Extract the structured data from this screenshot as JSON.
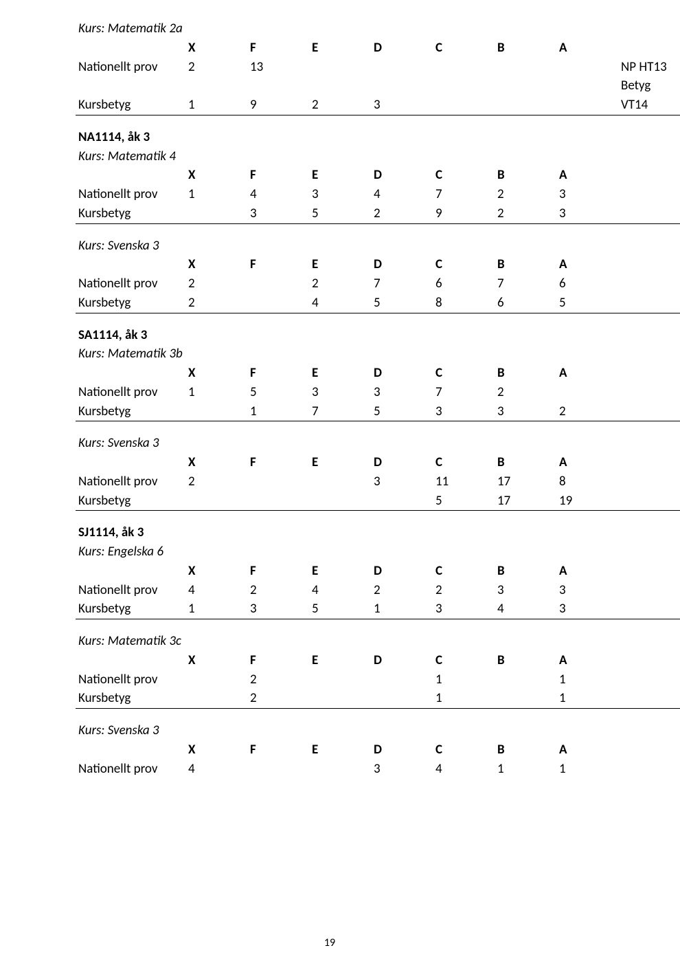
{
  "grade_headers": [
    "X",
    "F",
    "E",
    "D",
    "C",
    "B",
    "A"
  ],
  "labels": {
    "np": "Nationellt prov",
    "kb": "Kursbetyg"
  },
  "footer": "19",
  "s0": {
    "course": "Kurs: Matematik 2a",
    "np": {
      "X": "2",
      "F": "13",
      "E": "",
      "D": "",
      "C": "",
      "B": "",
      "A": "",
      "tr": "NP HT13"
    },
    "mid": {
      "tr": "Betyg"
    },
    "kb": {
      "X": "1",
      "F": "9",
      "E": "2",
      "D": "3",
      "C": "",
      "B": "",
      "A": "",
      "tr": "VT14"
    }
  },
  "s1": {
    "heading": "NA1114, åk 3",
    "course": "Kurs: Matematik 4",
    "np": {
      "X": "1",
      "F": "4",
      "E": "3",
      "D": "4",
      "C": "7",
      "B": "2",
      "A": "3"
    },
    "kb": {
      "X": "",
      "F": "3",
      "E": "5",
      "D": "2",
      "C": "9",
      "B": "2",
      "A": "3"
    }
  },
  "s2": {
    "course": "Kurs: Svenska 3",
    "np": {
      "X": "2",
      "F": "",
      "E": "2",
      "D": "7",
      "C": "6",
      "B": "7",
      "A": "6"
    },
    "kb": {
      "X": "2",
      "F": "",
      "E": "4",
      "D": "5",
      "C": "8",
      "B": "6",
      "A": "5"
    }
  },
  "s3": {
    "heading": "SA1114, åk 3",
    "course": "Kurs: Matematik 3b",
    "np": {
      "X": "1",
      "F": "5",
      "E": "3",
      "D": "3",
      "C": "7",
      "B": "2",
      "A": ""
    },
    "kb": {
      "X": "",
      "F": "1",
      "E": "7",
      "D": "5",
      "C": "3",
      "B": "3",
      "A": "2"
    }
  },
  "s4": {
    "course": "Kurs: Svenska 3",
    "np": {
      "X": "2",
      "F": "",
      "E": "",
      "D": "3",
      "C": "11",
      "B": "17",
      "A": "8"
    },
    "kb": {
      "X": "",
      "F": "",
      "E": "",
      "D": "",
      "C": "5",
      "B": "17",
      "A": "19"
    }
  },
  "s5": {
    "heading": "SJ1114, åk 3",
    "course": "Kurs: Engelska 6",
    "np": {
      "X": "4",
      "F": "2",
      "E": "4",
      "D": "2",
      "C": "2",
      "B": "3",
      "A": "3"
    },
    "kb": {
      "X": "1",
      "F": "3",
      "E": "5",
      "D": "1",
      "C": "3",
      "B": "4",
      "A": "3"
    }
  },
  "s6": {
    "course": "Kurs: Matematik 3c",
    "np": {
      "X": "",
      "F": "2",
      "E": "",
      "D": "",
      "C": "1",
      "B": "",
      "A": "1"
    },
    "kb": {
      "X": "",
      "F": "2",
      "E": "",
      "D": "",
      "C": "1",
      "B": "",
      "A": "1"
    }
  },
  "s7": {
    "course": "Kurs: Svenska 3",
    "np": {
      "X": "4",
      "F": "",
      "E": "",
      "D": "3",
      "C": "4",
      "B": "1",
      "A": "1"
    }
  }
}
